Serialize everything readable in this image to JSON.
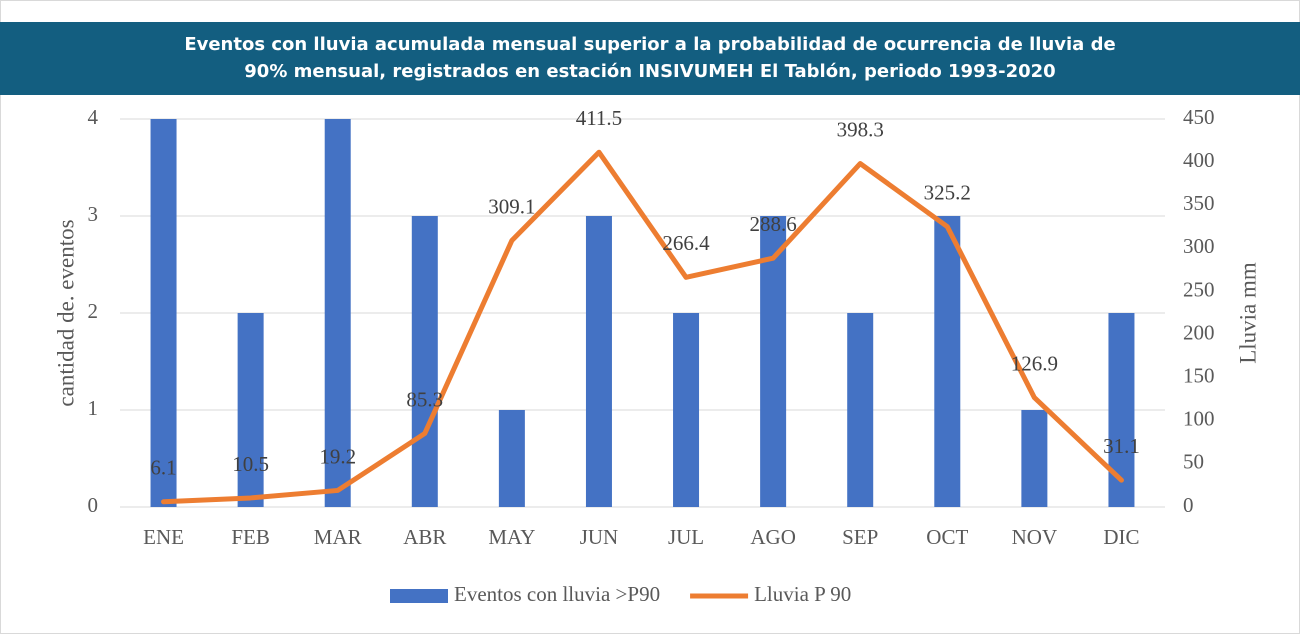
{
  "chart_data": {
    "type": "bar",
    "title": "Eventos con lluvia acumulada mensual superior a la probabilidad de ocurrencia de lluvia de 90% mensual, registrados en estación INSIVUMEH El Tablón, periodo 1993-2020",
    "title_lines": [
      "Eventos con lluvia acumulada mensual superior a la probabilidad de ocurrencia de lluvia de",
      "90% mensual, registrados en estación INSIVUMEH El Tablón, periodo 1993-2020"
    ],
    "ylabel": "cantidad de. eventos",
    "y2label": "Lluvia mm",
    "categories": [
      "ENE",
      "FEB",
      "MAR",
      "ABR",
      "MAY",
      "JUN",
      "JUL",
      "AGO",
      "SEP",
      "OCT",
      "NOV",
      "DIC"
    ],
    "series": [
      {
        "name": "Eventos con lluvia >P90",
        "type": "bar",
        "color": "#4472c4",
        "values": [
          4,
          2,
          4,
          3,
          1,
          3,
          2,
          3,
          2,
          3,
          1,
          2
        ]
      },
      {
        "name": "Lluvia P 90",
        "type": "line",
        "axis": "y2",
        "color": "#ed7d31",
        "values": [
          6.1,
          10.5,
          19.2,
          85.3,
          309.1,
          411.5,
          266.4,
          288.6,
          398.3,
          325.2,
          126.9,
          31.1
        ]
      }
    ],
    "ylim": [
      0,
      4
    ],
    "yticks": [
      0,
      1,
      2,
      3,
      4
    ],
    "y2lim": [
      0,
      450
    ],
    "y2ticks": [
      0,
      50,
      100,
      150,
      200,
      250,
      300,
      350,
      400,
      450
    ],
    "grid": true,
    "legend": "bottom"
  }
}
